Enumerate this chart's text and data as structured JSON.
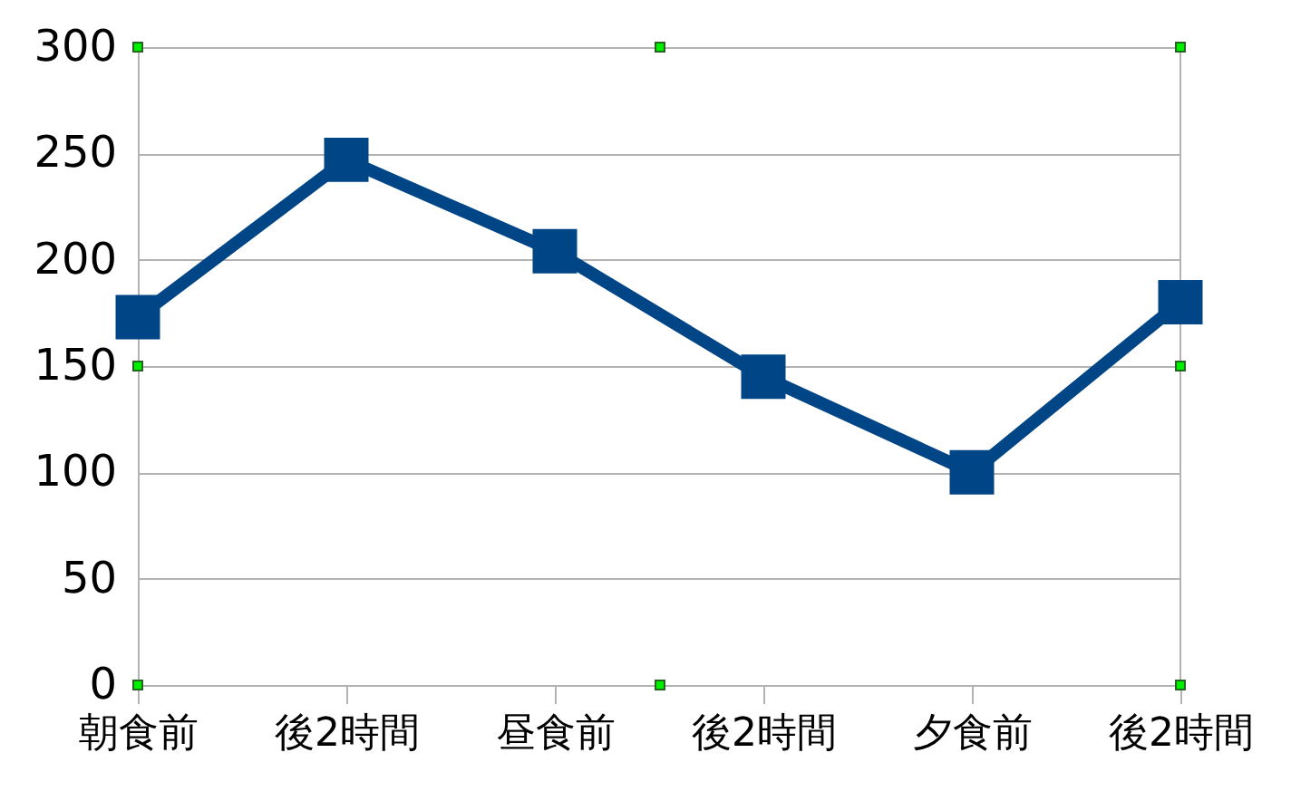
{
  "chart_data": {
    "type": "line",
    "categories": [
      "朝食前",
      "後2時間",
      "昼食前",
      "後2時間",
      "夕食前",
      "後2時間"
    ],
    "series": [
      {
        "color": "#004586",
        "values": [
          173,
          247,
          204,
          145,
          100,
          180
        ]
      }
    ],
    "ylim": [
      0,
      300
    ],
    "yticks": [
      0,
      50,
      100,
      150,
      200,
      250,
      300
    ],
    "grid": "y",
    "legend": false,
    "marker": "square",
    "line_style": "solid"
  }
}
